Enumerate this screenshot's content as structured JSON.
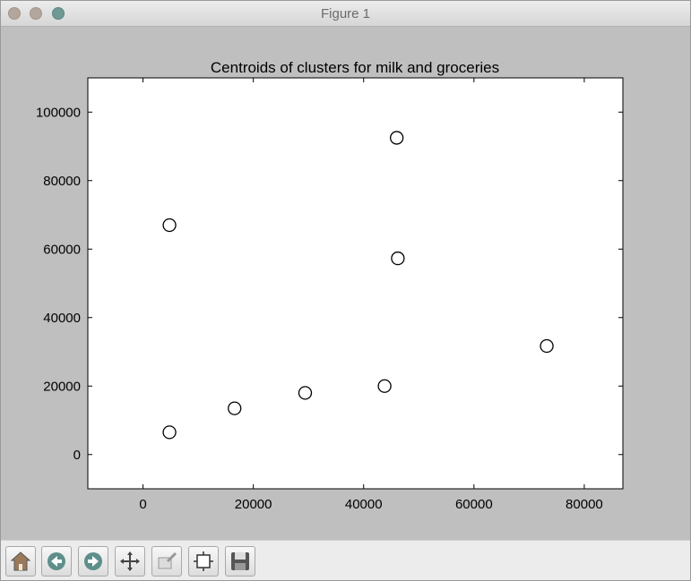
{
  "window": {
    "title": "Figure 1"
  },
  "chart_data": {
    "type": "scatter",
    "title": "Centroids of clusters for milk and groceries",
    "xlabel": "",
    "ylabel": "",
    "xlim": [
      -10000,
      87000
    ],
    "ylim": [
      -10000,
      110000
    ],
    "xticks": [
      0,
      20000,
      40000,
      60000,
      80000
    ],
    "yticks": [
      0,
      20000,
      40000,
      60000,
      80000,
      100000
    ],
    "xtick_labels": [
      "0",
      "20000",
      "40000",
      "60000",
      "80000"
    ],
    "ytick_labels": [
      "0",
      "20000",
      "40000",
      "60000",
      "80000",
      "100000"
    ],
    "grid": false,
    "marker": "open-circle",
    "series": [
      {
        "points": [
          {
            "x": 4800,
            "y": 67000
          },
          {
            "x": 46000,
            "y": 92500
          },
          {
            "x": 46200,
            "y": 57300
          },
          {
            "x": 73200,
            "y": 31700
          },
          {
            "x": 43800,
            "y": 20000
          },
          {
            "x": 29400,
            "y": 18000
          },
          {
            "x": 16600,
            "y": 13500
          },
          {
            "x": 4800,
            "y": 6500
          }
        ]
      }
    ]
  },
  "toolbar": {
    "buttons": [
      {
        "name": "home-button",
        "icon": "home-icon"
      },
      {
        "name": "back-button",
        "icon": "back-arrow-icon"
      },
      {
        "name": "forward-button",
        "icon": "forward-arrow-icon"
      },
      {
        "name": "pan-button",
        "icon": "move-icon"
      },
      {
        "name": "zoom-button",
        "icon": "zoom-rect-icon"
      },
      {
        "name": "configure-subplots-button",
        "icon": "subplots-icon"
      },
      {
        "name": "save-button",
        "icon": "save-icon"
      }
    ]
  }
}
